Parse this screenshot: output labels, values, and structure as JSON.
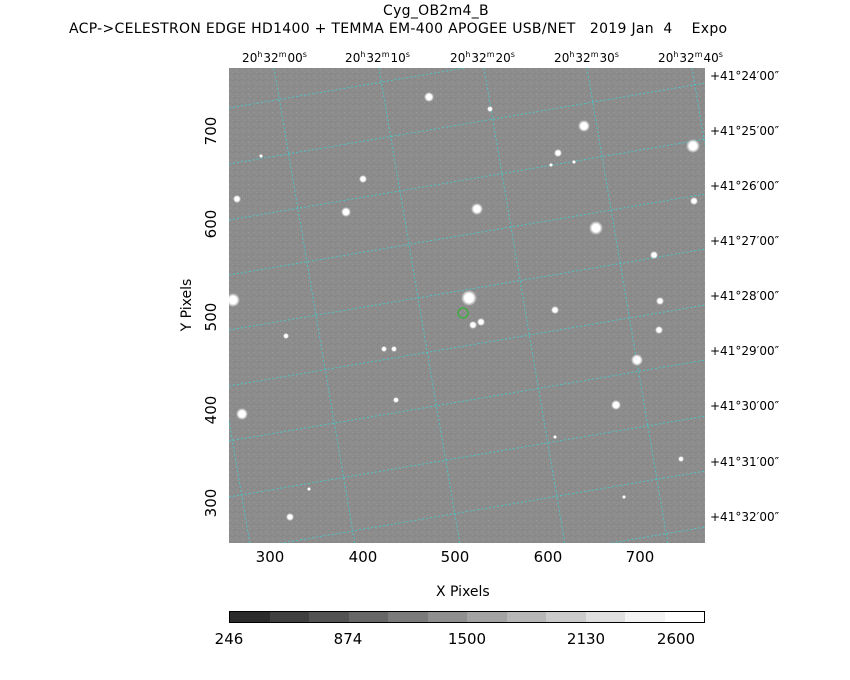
{
  "header": {
    "object_name": "Cyg_OB2m4_B",
    "instrument_line": "ACP->CELESTRON EDGE HD1400 + TEMMA EM-400 APOGEE USB/NET   2019 Jan  4    Expo"
  },
  "ra_labels": [
    {
      "h": "20",
      "m": "32",
      "s": "00"
    },
    {
      "h": "20",
      "m": "32",
      "s": "10"
    },
    {
      "h": "20",
      "m": "32",
      "s": "20"
    },
    {
      "h": "20",
      "m": "32",
      "s": "30"
    },
    {
      "h": "20",
      "m": "32",
      "s": "40"
    }
  ],
  "ra_units": {
    "h": "h",
    "m": "m",
    "s": "s"
  },
  "dec_labels": [
    "+41°24′00″",
    "+41°25′00″",
    "+41°26′00″",
    "+41°27′00″",
    "+41°28′00″",
    "+41°29′00″",
    "+41°30′00″",
    "+41°31′00″",
    "+41°32′00″"
  ],
  "x_axis": {
    "title": "X Pixels",
    "ticks": [
      "300",
      "400",
      "500",
      "600",
      "700"
    ]
  },
  "y_axis": {
    "title": "Y Pixels",
    "ticks": [
      "300",
      "400",
      "500",
      "600",
      "700"
    ]
  },
  "colorbar": {
    "labels": [
      "246",
      "874",
      "1500",
      "2130",
      "2600"
    ],
    "min": 246,
    "max": 2600,
    "colors": [
      "#2b2b2b",
      "#3f3f3f",
      "#535353",
      "#676767",
      "#7b7b7b",
      "#8f8f8f",
      "#a3a3a3",
      "#b7b7b7",
      "#cbcbcb",
      "#dfdfdf",
      "#f3f3f3",
      "#ffffff"
    ]
  },
  "image": {
    "background_color": "#8c8c8c",
    "grid_color": "#3fd0d0",
    "target_marker_color": "#22bb22"
  }
}
